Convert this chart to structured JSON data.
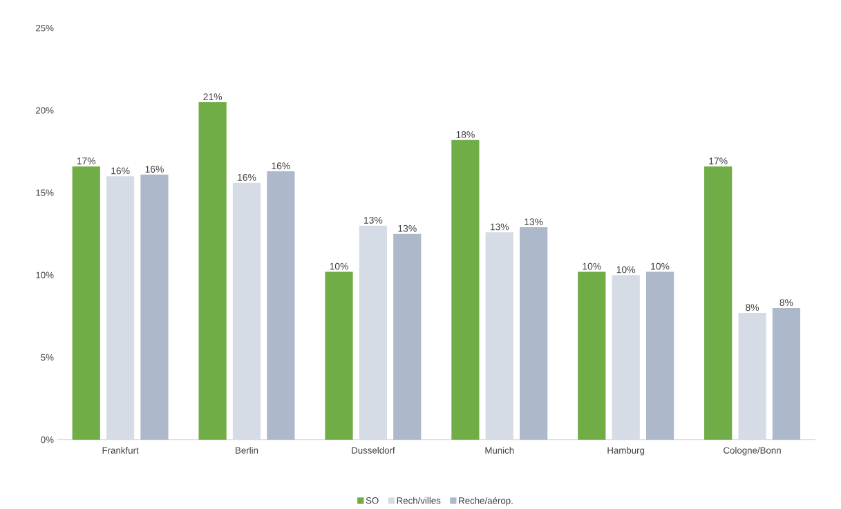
{
  "chart_data": {
    "type": "bar",
    "categories": [
      "Frankfurt",
      "Berlin",
      "Dusseldorf",
      "Munich",
      "Hamburg",
      "Cologne/Bonn"
    ],
    "series": [
      {
        "name": "SO",
        "color": "#70ad47",
        "values": [
          16.6,
          20.5,
          10.2,
          18.2,
          10.2,
          16.6
        ],
        "value_labels": [
          "17%",
          "21%",
          "10%",
          "18%",
          "10%",
          "17%"
        ]
      },
      {
        "name": "Rech/villes",
        "color": "#d6dce5",
        "values": [
          16.0,
          15.6,
          13.0,
          12.6,
          10.0,
          7.7
        ],
        "value_labels": [
          "16%",
          "16%",
          "13%",
          "13%",
          "10%",
          "8%"
        ]
      },
      {
        "name": "Reche/aérop.",
        "color": "#adb9ca",
        "values": [
          16.1,
          16.3,
          12.5,
          12.9,
          10.2,
          8.0
        ],
        "value_labels": [
          "16%",
          "16%",
          "13%",
          "13%",
          "10%",
          "8%"
        ]
      }
    ],
    "ylim": [
      0,
      25
    ],
    "yticks": [
      {
        "value": 0,
        "label": "0%"
      },
      {
        "value": 5,
        "label": "5%"
      },
      {
        "value": 10,
        "label": "10%"
      },
      {
        "value": 15,
        "label": "15%"
      },
      {
        "value": 20,
        "label": "20%"
      },
      {
        "value": 25,
        "label": "25%"
      }
    ],
    "grid": false,
    "legend": "bottom"
  }
}
